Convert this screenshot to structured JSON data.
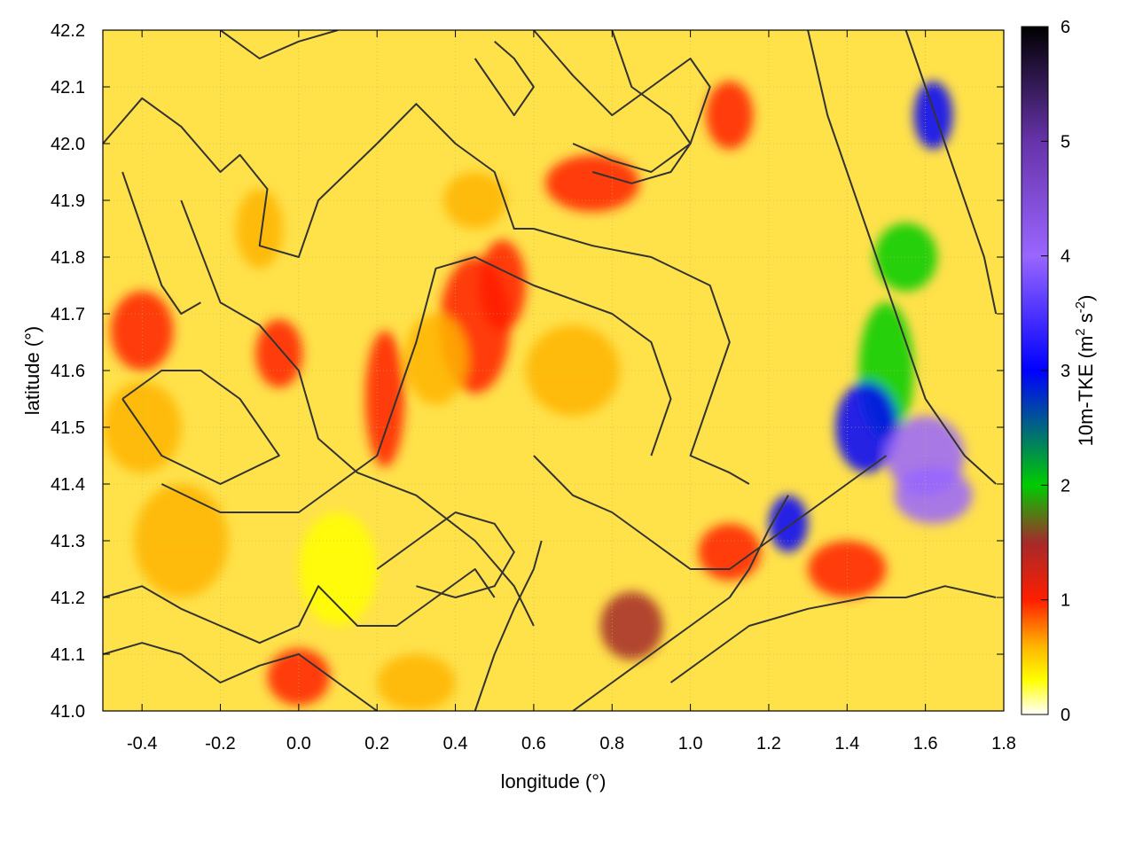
{
  "chart_data": {
    "type": "heatmap",
    "title": "",
    "xlabel": "longitude (°)",
    "ylabel": "latitude (°)",
    "colorbar_label_parts": [
      "10m-TKE (m",
      "2",
      " s",
      "-2",
      ")"
    ],
    "xlim": [
      -0.5,
      1.8
    ],
    "ylim": [
      41.0,
      42.2
    ],
    "xticks": [
      -0.4,
      -0.2,
      0.0,
      0.2,
      0.4,
      0.6,
      0.8,
      1.0,
      1.2,
      1.4,
      1.6,
      1.8
    ],
    "xtick_labels": [
      "-0.4",
      "-0.2",
      "0.0",
      "0.2",
      "0.4",
      "0.6",
      "0.8",
      "1.0",
      "1.2",
      "1.4",
      "1.6",
      "1.8"
    ],
    "yticks": [
      41.0,
      41.1,
      41.2,
      41.3,
      41.4,
      41.5,
      41.6,
      41.7,
      41.8,
      41.9,
      42.0,
      42.1,
      42.2
    ],
    "ytick_labels": [
      "41.0",
      "41.1",
      "41.2",
      "41.3",
      "41.4",
      "41.5",
      "41.6",
      "41.7",
      "41.8",
      "41.9",
      "42.0",
      "42.1",
      "42.2"
    ],
    "grid": true,
    "colorbar": {
      "range": [
        0,
        6
      ],
      "ticks": [
        0,
        1,
        2,
        3,
        4,
        5,
        6
      ],
      "tick_labels": [
        "0",
        "1",
        "2",
        "3",
        "4",
        "5",
        "6"
      ],
      "stops": [
        {
          "v": 0.0,
          "color": "#ffffff"
        },
        {
          "v": 0.3,
          "color": "#ffff00"
        },
        {
          "v": 0.6,
          "color": "#ffb400"
        },
        {
          "v": 1.0,
          "color": "#ff1e00"
        },
        {
          "v": 1.5,
          "color": "#a52a2a"
        },
        {
          "v": 2.0,
          "color": "#00cc00"
        },
        {
          "v": 3.0,
          "color": "#0000ff"
        },
        {
          "v": 4.0,
          "color": "#9966ff"
        },
        {
          "v": 5.0,
          "color": "#6633aa"
        },
        {
          "v": 6.0,
          "color": "#000000"
        }
      ]
    },
    "tke_features": [
      {
        "lon": 0.45,
        "lat": 41.68,
        "r_lon": 0.09,
        "r_lat": 0.12,
        "v": 1.1
      },
      {
        "lon": 0.52,
        "lat": 41.75,
        "r_lon": 0.06,
        "r_lat": 0.08,
        "v": 1.0
      },
      {
        "lon": 0.35,
        "lat": 41.62,
        "r_lon": 0.08,
        "r_lat": 0.08,
        "v": 0.9
      },
      {
        "lon": 0.22,
        "lat": 41.55,
        "r_lon": 0.05,
        "r_lat": 0.12,
        "v": 1.0
      },
      {
        "lon": -0.1,
        "lat": 41.85,
        "r_lon": 0.06,
        "r_lat": 0.07,
        "v": 0.9
      },
      {
        "lon": -0.05,
        "lat": 41.63,
        "r_lon": 0.06,
        "r_lat": 0.06,
        "v": 1.1
      },
      {
        "lon": -0.4,
        "lat": 41.67,
        "r_lon": 0.08,
        "r_lat": 0.07,
        "v": 1.3
      },
      {
        "lon": -0.4,
        "lat": 41.5,
        "r_lon": 0.1,
        "r_lat": 0.08,
        "v": 0.8
      },
      {
        "lon": 0.0,
        "lat": 41.06,
        "r_lon": 0.08,
        "r_lat": 0.05,
        "v": 1.1
      },
      {
        "lon": 0.3,
        "lat": 41.05,
        "r_lon": 0.1,
        "r_lat": 0.05,
        "v": 0.9
      },
      {
        "lon": 0.45,
        "lat": 41.9,
        "r_lon": 0.08,
        "r_lat": 0.05,
        "v": 0.9
      },
      {
        "lon": 0.75,
        "lat": 41.93,
        "r_lon": 0.12,
        "r_lat": 0.05,
        "v": 1.0
      },
      {
        "lon": 1.1,
        "lat": 42.05,
        "r_lon": 0.06,
        "r_lat": 0.06,
        "v": 1.4
      },
      {
        "lon": 1.5,
        "lat": 41.6,
        "r_lon": 0.07,
        "r_lat": 0.12,
        "v": 2.2
      },
      {
        "lon": 1.45,
        "lat": 41.5,
        "r_lon": 0.08,
        "r_lat": 0.08,
        "v": 3.8
      },
      {
        "lon": 1.6,
        "lat": 41.45,
        "r_lon": 0.1,
        "r_lat": 0.07,
        "v": 4.2
      },
      {
        "lon": 1.62,
        "lat": 41.38,
        "r_lon": 0.1,
        "r_lat": 0.05,
        "v": 4.8
      },
      {
        "lon": 1.55,
        "lat": 41.8,
        "r_lon": 0.08,
        "r_lat": 0.06,
        "v": 2.0
      },
      {
        "lon": 1.62,
        "lat": 42.05,
        "r_lon": 0.05,
        "r_lat": 0.06,
        "v": 3.0
      },
      {
        "lon": 1.25,
        "lat": 41.33,
        "r_lon": 0.05,
        "r_lat": 0.05,
        "v": 3.0
      },
      {
        "lon": 0.85,
        "lat": 41.15,
        "r_lon": 0.08,
        "r_lat": 0.06,
        "v": 1.5
      },
      {
        "lon": 1.1,
        "lat": 41.28,
        "r_lon": 0.08,
        "r_lat": 0.05,
        "v": 1.1
      },
      {
        "lon": 1.4,
        "lat": 41.25,
        "r_lon": 0.1,
        "r_lat": 0.05,
        "v": 1.0
      },
      {
        "lon": 0.7,
        "lat": 41.6,
        "r_lon": 0.12,
        "r_lat": 0.08,
        "v": 0.6
      },
      {
        "lon": -0.3,
        "lat": 41.3,
        "r_lon": 0.12,
        "r_lat": 0.1,
        "v": 0.6
      },
      {
        "lon": 0.1,
        "lat": 41.25,
        "r_lon": 0.1,
        "r_lat": 0.1,
        "v": 0.55
      }
    ],
    "contours": [
      [
        [
          -0.5,
          42.0
        ],
        [
          -0.4,
          42.08
        ],
        [
          -0.3,
          42.03
        ],
        [
          -0.2,
          41.95
        ],
        [
          -0.15,
          41.98
        ],
        [
          -0.08,
          41.92
        ],
        [
          -0.1,
          41.82
        ],
        [
          0.0,
          41.8
        ],
        [
          0.05,
          41.9
        ],
        [
          0.2,
          42.0
        ],
        [
          0.3,
          42.07
        ],
        [
          0.4,
          42.0
        ],
        [
          0.5,
          41.95
        ],
        [
          0.55,
          41.85
        ],
        [
          0.6,
          41.85
        ],
        [
          0.75,
          41.82
        ],
        [
          0.9,
          41.8
        ],
        [
          1.05,
          41.75
        ],
        [
          1.1,
          41.65
        ],
        [
          1.05,
          41.55
        ],
        [
          1.0,
          41.45
        ],
        [
          1.1,
          41.42
        ],
        [
          1.15,
          41.4
        ]
      ],
      [
        [
          -0.3,
          41.9
        ],
        [
          -0.2,
          41.72
        ],
        [
          -0.1,
          41.68
        ],
        [
          0.0,
          41.6
        ],
        [
          0.05,
          41.48
        ],
        [
          0.15,
          41.42
        ],
        [
          0.3,
          41.38
        ],
        [
          0.45,
          41.3
        ],
        [
          0.55,
          41.22
        ],
        [
          0.6,
          41.15
        ]
      ],
      [
        [
          -0.45,
          41.55
        ],
        [
          -0.35,
          41.6
        ],
        [
          -0.25,
          41.6
        ],
        [
          -0.15,
          41.55
        ],
        [
          -0.05,
          41.45
        ],
        [
          -0.2,
          41.4
        ],
        [
          -0.35,
          41.45
        ],
        [
          -0.45,
          41.55
        ]
      ],
      [
        [
          -0.35,
          41.4
        ],
        [
          -0.2,
          41.35
        ],
        [
          0.0,
          41.35
        ],
        [
          0.1,
          41.4
        ],
        [
          0.2,
          41.45
        ],
        [
          0.25,
          41.55
        ],
        [
          0.3,
          41.65
        ],
        [
          0.35,
          41.78
        ],
        [
          0.45,
          41.8
        ],
        [
          0.6,
          41.75
        ],
        [
          0.8,
          41.7
        ],
        [
          0.9,
          41.65
        ],
        [
          0.95,
          41.55
        ],
        [
          0.9,
          41.45
        ]
      ],
      [
        [
          -0.5,
          41.2
        ],
        [
          -0.4,
          41.22
        ],
        [
          -0.3,
          41.18
        ],
        [
          -0.2,
          41.15
        ],
        [
          -0.1,
          41.12
        ],
        [
          0.0,
          41.15
        ],
        [
          0.05,
          41.22
        ],
        [
          0.15,
          41.15
        ],
        [
          0.25,
          41.15
        ],
        [
          0.35,
          41.2
        ],
        [
          0.45,
          41.25
        ],
        [
          0.5,
          41.2
        ]
      ],
      [
        [
          -0.5,
          41.1
        ],
        [
          -0.4,
          41.12
        ],
        [
          -0.3,
          41.1
        ],
        [
          -0.2,
          41.05
        ],
        [
          -0.1,
          41.08
        ],
        [
          0.0,
          41.1
        ],
        [
          0.1,
          41.05
        ],
        [
          0.2,
          41.0
        ]
      ],
      [
        [
          0.6,
          42.2
        ],
        [
          0.7,
          42.12
        ],
        [
          0.8,
          42.05
        ],
        [
          0.9,
          42.1
        ],
        [
          1.0,
          42.15
        ],
        [
          1.05,
          42.1
        ],
        [
          1.0,
          42.0
        ],
        [
          0.9,
          41.95
        ],
        [
          0.8,
          41.97
        ],
        [
          0.7,
          42.0
        ]
      ],
      [
        [
          0.8,
          42.2
        ],
        [
          0.85,
          42.1
        ],
        [
          0.95,
          42.05
        ],
        [
          1.0,
          42.0
        ],
        [
          0.95,
          41.95
        ],
        [
          0.85,
          41.93
        ],
        [
          0.75,
          41.95
        ]
      ],
      [
        [
          1.3,
          42.2
        ],
        [
          1.35,
          42.05
        ],
        [
          1.4,
          41.95
        ],
        [
          1.45,
          41.85
        ],
        [
          1.5,
          41.75
        ],
        [
          1.55,
          41.65
        ],
        [
          1.6,
          41.55
        ],
        [
          1.7,
          41.45
        ],
        [
          1.78,
          41.4
        ]
      ],
      [
        [
          1.55,
          42.2
        ],
        [
          1.6,
          42.1
        ],
        [
          1.65,
          42.0
        ],
        [
          1.7,
          41.9
        ],
        [
          1.75,
          41.8
        ],
        [
          1.78,
          41.7
        ]
      ],
      [
        [
          0.6,
          41.45
        ],
        [
          0.7,
          41.38
        ],
        [
          0.8,
          41.35
        ],
        [
          0.9,
          41.3
        ],
        [
          1.0,
          41.25
        ],
        [
          1.1,
          41.25
        ],
        [
          1.2,
          41.3
        ],
        [
          1.3,
          41.35
        ],
        [
          1.4,
          41.4
        ],
        [
          1.5,
          41.45
        ]
      ],
      [
        [
          0.7,
          41.0
        ],
        [
          0.8,
          41.05
        ],
        [
          0.9,
          41.1
        ],
        [
          1.0,
          41.15
        ],
        [
          1.1,
          41.2
        ],
        [
          1.15,
          41.25
        ],
        [
          1.2,
          41.32
        ],
        [
          1.25,
          41.38
        ]
      ],
      [
        [
          0.95,
          41.05
        ],
        [
          1.05,
          41.1
        ],
        [
          1.15,
          41.15
        ],
        [
          1.3,
          41.18
        ],
        [
          1.45,
          41.2
        ],
        [
          1.55,
          41.2
        ],
        [
          1.65,
          41.22
        ],
        [
          1.78,
          41.2
        ]
      ],
      [
        [
          0.2,
          41.25
        ],
        [
          0.3,
          41.3
        ],
        [
          0.4,
          41.35
        ],
        [
          0.5,
          41.33
        ],
        [
          0.55,
          41.28
        ],
        [
          0.5,
          41.22
        ],
        [
          0.4,
          41.2
        ],
        [
          0.3,
          41.22
        ]
      ],
      [
        [
          0.45,
          41.0
        ],
        [
          0.5,
          41.1
        ],
        [
          0.55,
          41.18
        ],
        [
          0.6,
          41.25
        ],
        [
          0.62,
          41.3
        ]
      ],
      [
        [
          -0.45,
          41.95
        ],
        [
          -0.4,
          41.85
        ],
        [
          -0.35,
          41.75
        ],
        [
          -0.3,
          41.7
        ],
        [
          -0.25,
          41.72
        ]
      ],
      [
        [
          -0.2,
          42.2
        ],
        [
          -0.1,
          42.15
        ],
        [
          0.0,
          42.18
        ],
        [
          0.1,
          42.2
        ]
      ],
      [
        [
          0.45,
          42.15
        ],
        [
          0.5,
          42.1
        ],
        [
          0.55,
          42.05
        ],
        [
          0.6,
          42.1
        ],
        [
          0.55,
          42.15
        ],
        [
          0.5,
          42.18
        ]
      ]
    ]
  }
}
